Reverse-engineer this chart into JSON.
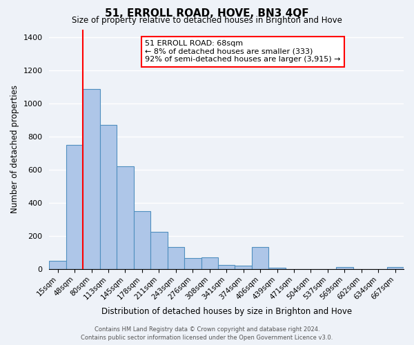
{
  "title": "51, ERROLL ROAD, HOVE, BN3 4QF",
  "subtitle": "Size of property relative to detached houses in Brighton and Hove",
  "xlabel": "Distribution of detached houses by size in Brighton and Hove",
  "ylabel": "Number of detached properties",
  "bar_labels": [
    "15sqm",
    "48sqm",
    "80sqm",
    "113sqm",
    "145sqm",
    "178sqm",
    "211sqm",
    "243sqm",
    "276sqm",
    "308sqm",
    "341sqm",
    "374sqm",
    "406sqm",
    "439sqm",
    "471sqm",
    "504sqm",
    "537sqm",
    "569sqm",
    "602sqm",
    "634sqm",
    "667sqm"
  ],
  "bar_values": [
    50,
    750,
    1090,
    870,
    620,
    350,
    225,
    130,
    65,
    70,
    25,
    18,
    130,
    5,
    0,
    0,
    0,
    10,
    0,
    0,
    10
  ],
  "bar_color": "#aec6e8",
  "bar_edge_color": "#4f8fbf",
  "ylim": [
    0,
    1450
  ],
  "yticks": [
    0,
    200,
    400,
    600,
    800,
    1000,
    1200,
    1400
  ],
  "annotation_title": "51 ERROLL ROAD: 68sqm",
  "annotation_line1": "← 8% of detached houses are smaller (333)",
  "annotation_line2": "92% of semi-detached houses are larger (3,915) →",
  "footer1": "Contains HM Land Registry data © Crown copyright and database right 2024.",
  "footer2": "Contains public sector information licensed under the Open Government Licence v3.0.",
  "bg_color": "#eef2f8",
  "grid_color": "#ffffff"
}
